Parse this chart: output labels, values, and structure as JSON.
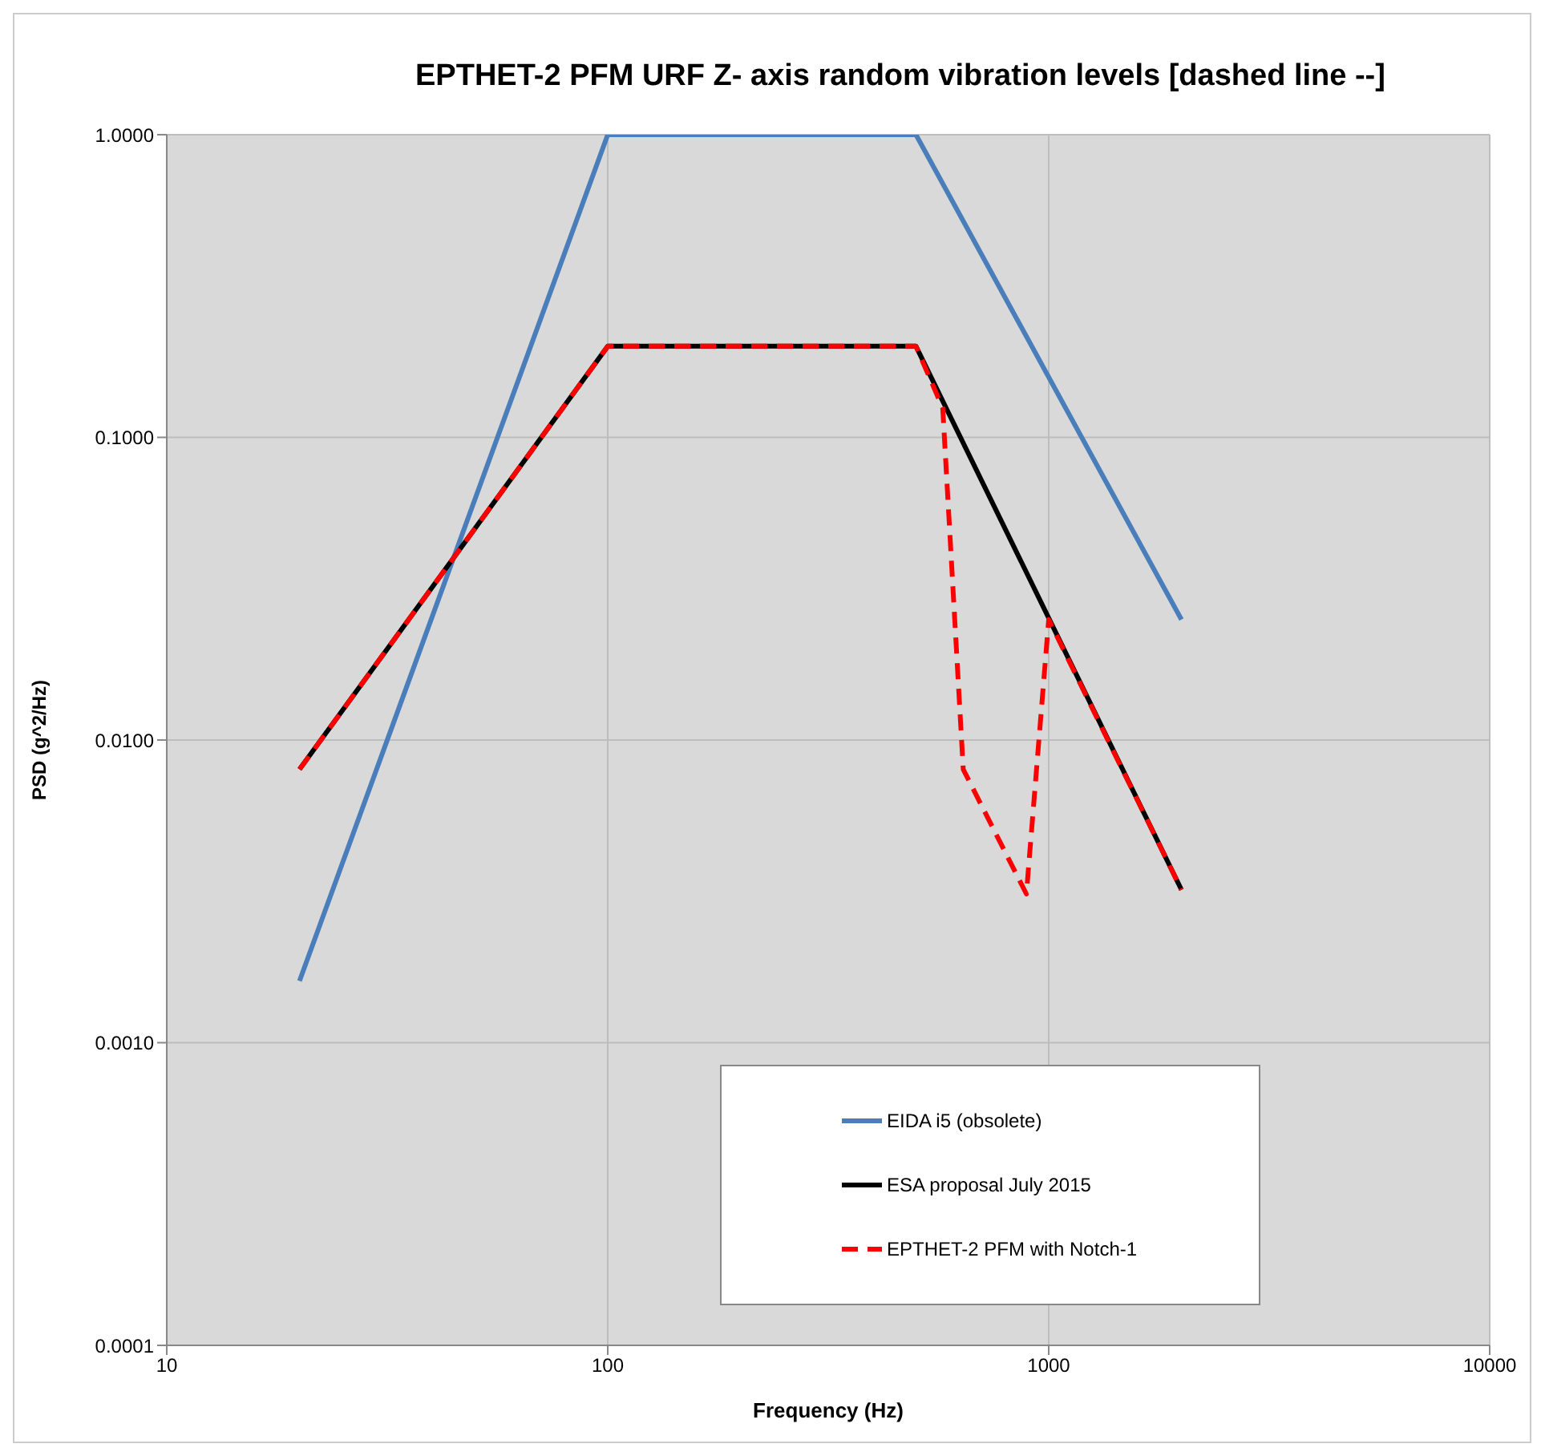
{
  "chart_data": {
    "type": "line",
    "title": "EPTHET-2 PFM URF Z- axis random vibration levels [dashed line --]",
    "xlabel": "Frequency (Hz)",
    "ylabel": "PSD (g^2/Hz)",
    "log": "xy",
    "xlim": [
      10,
      10000
    ],
    "xticks": [
      10,
      100,
      1000,
      10000
    ],
    "ylim": [
      0.0001,
      1
    ],
    "yticks": [
      {
        "value": 0.0001,
        "label": "0.0001"
      },
      {
        "value": 0.001,
        "label": "0.0010"
      },
      {
        "value": 0.01,
        "label": "0.0100"
      },
      {
        "value": 0.1,
        "label": "0.1000"
      },
      {
        "value": 1,
        "label": "1.0000"
      }
    ],
    "grid": true,
    "legend": "bottom",
    "marker": "none",
    "series": [
      {
        "name": "EIDA i5 (obsolete)",
        "color": "#4a7ebb",
        "x": [
          20,
          100,
          500,
          2000
        ],
        "values": [
          0.0016,
          1,
          1,
          0.025
        ],
        "line_style": "solid"
      },
      {
        "name": "ESA proposal July 2015",
        "color": "#000000",
        "x": [
          20,
          100,
          500,
          2000
        ],
        "values": [
          0.008,
          0.2,
          0.2,
          0.0032
        ],
        "line_style": "solid"
      },
      {
        "name": "EPTHET-2 PFM with Notch-1",
        "color": "#ff0000",
        "x": [
          20,
          100,
          500,
          575,
          640,
          890,
          1000,
          2000
        ],
        "values": [
          0.008,
          0.2,
          0.2,
          0.125,
          0.008,
          0.0031,
          0.025,
          0.0032
        ],
        "line_style": "dashed"
      }
    ]
  }
}
